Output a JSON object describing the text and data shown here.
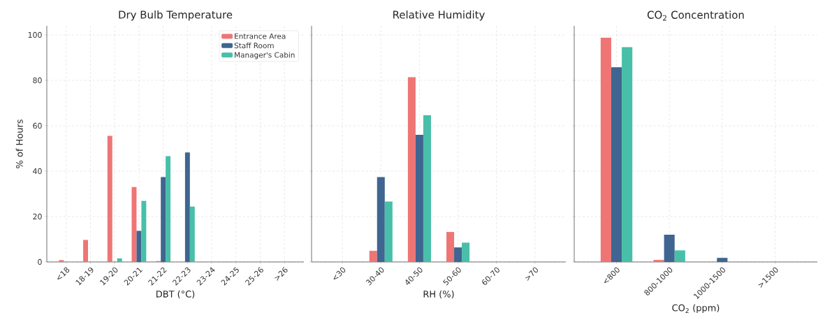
{
  "chart_data": [
    {
      "type": "bar",
      "title": "Dry Bulb Temperature",
      "xlabel": "DBT (°C)",
      "ylabel": "% of Hours",
      "categories": [
        "<18",
        "18-19",
        "19-20",
        "20-21",
        "21-22",
        "22-23",
        "23-24",
        "24-25",
        "25-26",
        ">26"
      ],
      "series": [
        {
          "name": "Entrance Area",
          "color": "#ef7575",
          "values": [
            0.8,
            9.7,
            55.5,
            33,
            0.4,
            0,
            0,
            0,
            0,
            0
          ]
        },
        {
          "name": "Staff Room",
          "color": "#3f6590",
          "values": [
            0,
            0,
            0,
            13.7,
            37.4,
            48.2,
            0,
            0,
            0,
            0
          ]
        },
        {
          "name": "Manager's Cabin",
          "color": "#48bfa8",
          "values": [
            0,
            0,
            1.6,
            26.9,
            46.6,
            24.4,
            0,
            0,
            0,
            0
          ]
        }
      ],
      "ylim": [
        0,
        104
      ],
      "yticks": [
        0,
        20,
        40,
        60,
        80,
        100
      ],
      "grid": true,
      "legend": "top right"
    },
    {
      "type": "bar",
      "title": "Relative Humidity",
      "xlabel": "RH (%)",
      "categories": [
        "<30",
        "30-40",
        "40-50",
        "50-60",
        "60-70",
        ">70"
      ],
      "series": [
        {
          "color": "#ef7575",
          "values": [
            0,
            4.9,
            81.4,
            13.2,
            0,
            0
          ]
        },
        {
          "color": "#3f6590",
          "values": [
            0,
            37.4,
            56,
            6.4,
            0,
            0
          ]
        },
        {
          "color": "#48bfa8",
          "values": [
            0,
            26.6,
            64.6,
            8.5,
            0,
            0
          ]
        }
      ],
      "ylim": [
        0,
        104
      ],
      "yticks": [
        0,
        20,
        40,
        60,
        80,
        100
      ],
      "grid": true,
      "tick_labels": "x"
    },
    {
      "type": "bar",
      "title": "CO$_{2}$ Concentration",
      "xlabel": "CO$_{2}$ (ppm)",
      "categories": [
        "<800",
        "800-1000",
        "1000-1500",
        ">1500"
      ],
      "series": [
        {
          "color": "#ef7575",
          "values": [
            98.8,
            0.9,
            0,
            0
          ]
        },
        {
          "color": "#3f6590",
          "values": [
            85.8,
            12,
            1.8,
            0
          ]
        },
        {
          "color": "#48bfa8",
          "values": [
            94.6,
            5.1,
            0,
            0
          ]
        }
      ],
      "ylim": [
        0,
        104
      ],
      "yticks": [
        0,
        20,
        40,
        60,
        80,
        100
      ],
      "grid": true,
      "tick_labels": "x"
    }
  ]
}
